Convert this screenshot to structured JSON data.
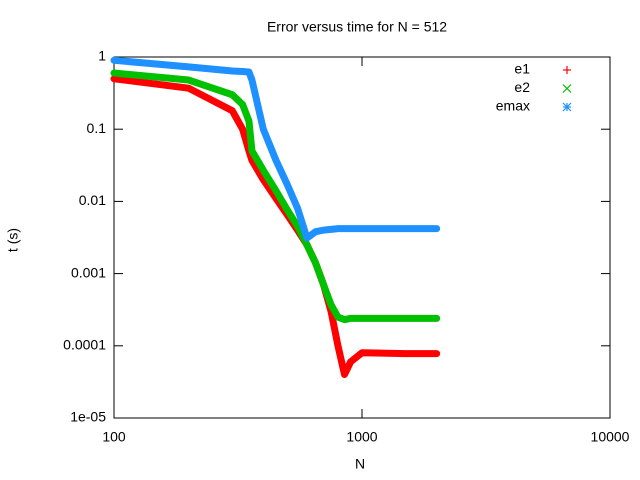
{
  "chart_data": {
    "type": "line",
    "title": "Error versus time for N = 512",
    "x_label": "N",
    "y_label": "t (s)",
    "x_log": true,
    "y_log": true,
    "xlim": [
      100,
      10000
    ],
    "ylim": [
      1e-05,
      1
    ],
    "xticks": [
      100,
      1000,
      10000
    ],
    "yticks": [
      1,
      0.1,
      0.01,
      0.001,
      0.0001,
      {
        "value": 1e-05,
        "label": "1e-05"
      }
    ],
    "legend": "top right",
    "x": [
      100,
      200,
      300,
      330,
      350,
      360,
      400,
      450,
      500,
      550,
      600,
      650,
      700,
      750,
      800,
      850,
      900,
      1000,
      1500,
      2000
    ],
    "series": [
      {
        "name": "e1",
        "color": "#ff0000",
        "marker": "plus",
        "values": [
          0.5,
          0.37,
          0.18,
          0.1,
          0.05,
          0.037,
          0.02,
          0.011,
          0.0065,
          0.004,
          0.0025,
          0.0014,
          0.0007,
          0.0003,
          0.0001,
          4e-05,
          6e-05,
          8e-05,
          7.8e-05,
          7.8e-05
        ]
      },
      {
        "name": "e2",
        "color": "#00c000",
        "marker": "cross",
        "values": [
          0.6,
          0.48,
          0.3,
          0.22,
          0.13,
          0.05,
          0.027,
          0.014,
          0.0076,
          0.0045,
          0.0025,
          0.0014,
          0.0007,
          0.00037,
          0.00025,
          0.00023,
          0.00024,
          0.00024,
          0.00024,
          0.00024
        ]
      },
      {
        "name": "emax",
        "color": "#1e90ff",
        "marker": "star",
        "values": [
          0.9,
          0.73,
          0.64,
          0.63,
          0.62,
          0.48,
          0.1,
          0.037,
          0.017,
          0.008,
          0.0031,
          0.0038,
          0.004,
          0.0041,
          0.0042,
          0.0042,
          0.0042,
          0.0042,
          0.0042,
          0.0042
        ]
      }
    ]
  }
}
